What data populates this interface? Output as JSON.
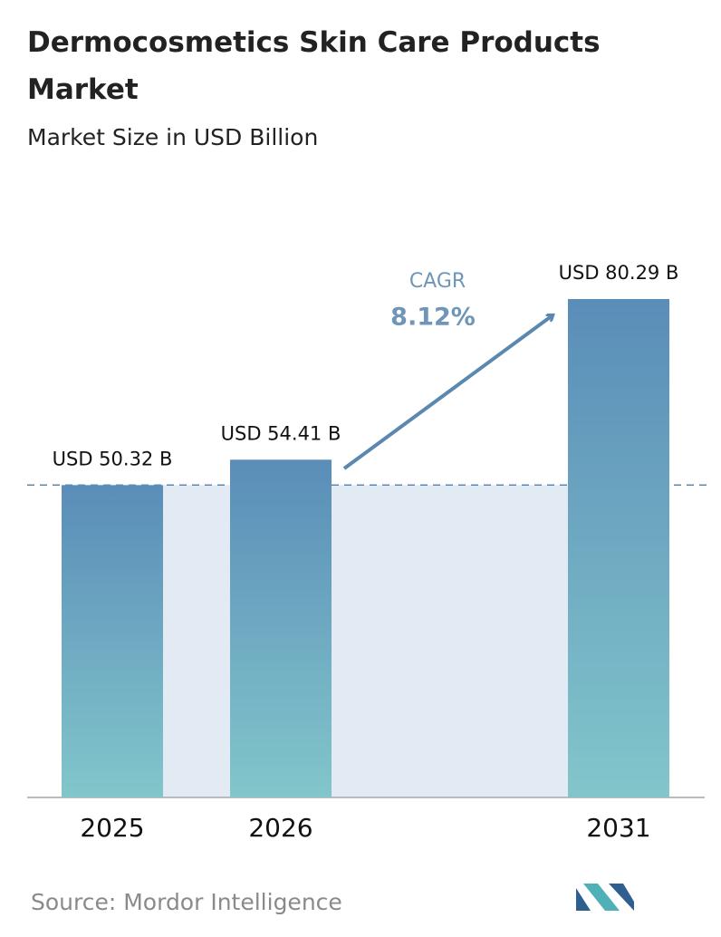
{
  "chart_data": {
    "type": "bar",
    "title": "Dermocosmetics Skin Care Products Market",
    "subtitle": "Market Size in USD Billion",
    "categories": [
      "2025",
      "2026",
      "2031"
    ],
    "values": [
      50.32,
      54.41,
      80.29
    ],
    "value_labels": [
      "USD 50.32 B",
      "USD 54.41 B",
      "USD 80.29 B"
    ],
    "annotation": {
      "label": "CAGR",
      "value": "8.12%"
    },
    "source": "Source:  Mordor Intelligence"
  }
}
